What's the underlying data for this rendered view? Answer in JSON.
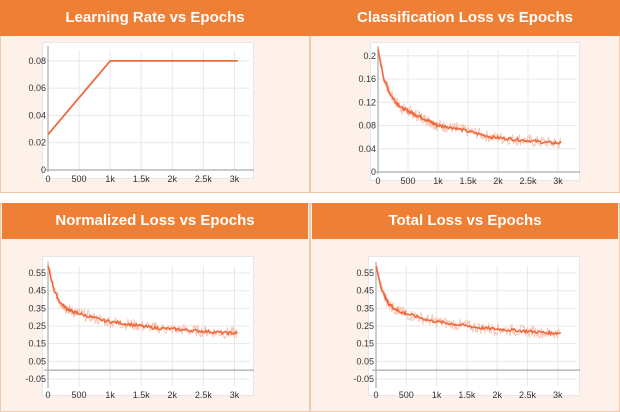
{
  "colors": {
    "header": "#ee7f34",
    "line": "#ee6a3f",
    "line_light": "#f6b9a2",
    "grid": "#e8e8e8",
    "axis": "#aaaaaa"
  },
  "chart_data": [
    {
      "type": "line",
      "title": "Learning Rate vs Epochs",
      "x_ticks": [
        "0",
        "500",
        "1k",
        "1.5k",
        "2k",
        "2.5k",
        "3k"
      ],
      "y_ticks": [
        "0",
        "0.02",
        "0.04",
        "0.06",
        "0.08"
      ],
      "xlim": [
        0,
        3250
      ],
      "ylim": [
        0,
        0.088
      ],
      "series": [
        {
          "x": [
            0,
            1000,
            3050
          ],
          "y": [
            0.026,
            0.08,
            0.08
          ]
        }
      ]
    },
    {
      "type": "line",
      "title": "Classification Loss vs Epochs",
      "x_ticks": [
        "0",
        "500",
        "1k",
        "1.5k",
        "2k",
        "2.5k",
        "3k"
      ],
      "y_ticks": [
        "0",
        "0.04",
        "0.08",
        "0.12",
        "0.16",
        "0.2"
      ],
      "xlim": [
        0,
        3300
      ],
      "ylim": [
        0,
        0.21
      ],
      "series": [
        {
          "x": [
            0,
            100,
            200,
            300,
            400,
            500,
            600,
            700,
            800,
            900,
            1000,
            1150,
            1300,
            1500,
            1700,
            1900,
            2100,
            2300,
            2500,
            2700,
            2900,
            3050
          ],
          "y": [
            0.21,
            0.16,
            0.135,
            0.12,
            0.11,
            0.105,
            0.1,
            0.095,
            0.09,
            0.085,
            0.08,
            0.078,
            0.075,
            0.07,
            0.065,
            0.06,
            0.058,
            0.056,
            0.054,
            0.052,
            0.05,
            0.05
          ]
        }
      ]
    },
    {
      "type": "line",
      "title": "Normalized Loss vs Epochs",
      "x_ticks": [
        "0",
        "500",
        "1k",
        "1.5k",
        "2k",
        "2.5k",
        "3k"
      ],
      "y_ticks": [
        "-0.05",
        "0.05",
        "0.15",
        "0.25",
        "0.35",
        "0.45",
        "0.55"
      ],
      "xlim": [
        0,
        3250
      ],
      "ylim": [
        -0.09,
        0.59
      ],
      "series": [
        {
          "x": [
            0,
            100,
            200,
            300,
            400,
            500,
            700,
            900,
            1100,
            1300,
            1500,
            1700,
            1900,
            2100,
            2300,
            2500,
            2700,
            2900,
            3050
          ],
          "y": [
            0.59,
            0.45,
            0.38,
            0.35,
            0.33,
            0.32,
            0.3,
            0.28,
            0.27,
            0.26,
            0.25,
            0.24,
            0.235,
            0.23,
            0.225,
            0.22,
            0.215,
            0.21,
            0.21
          ]
        }
      ]
    },
    {
      "type": "line",
      "title": "Total Loss vs Epochs",
      "x_ticks": [
        "0",
        "500",
        "1k",
        "1.5k",
        "2k",
        "2.5k",
        "3k"
      ],
      "y_ticks": [
        "-0.05",
        "0.05",
        "0.15",
        "0.25",
        "0.35",
        "0.45",
        "0.55"
      ],
      "xlim": [
        0,
        3300
      ],
      "ylim": [
        -0.09,
        0.59
      ],
      "series": [
        {
          "x": [
            0,
            100,
            200,
            300,
            400,
            500,
            700,
            900,
            1100,
            1300,
            1500,
            1700,
            1900,
            2100,
            2300,
            2500,
            2700,
            2900,
            3050
          ],
          "y": [
            0.59,
            0.45,
            0.38,
            0.35,
            0.33,
            0.32,
            0.3,
            0.28,
            0.27,
            0.26,
            0.25,
            0.24,
            0.235,
            0.23,
            0.225,
            0.22,
            0.215,
            0.21,
            0.21
          ]
        }
      ]
    }
  ]
}
